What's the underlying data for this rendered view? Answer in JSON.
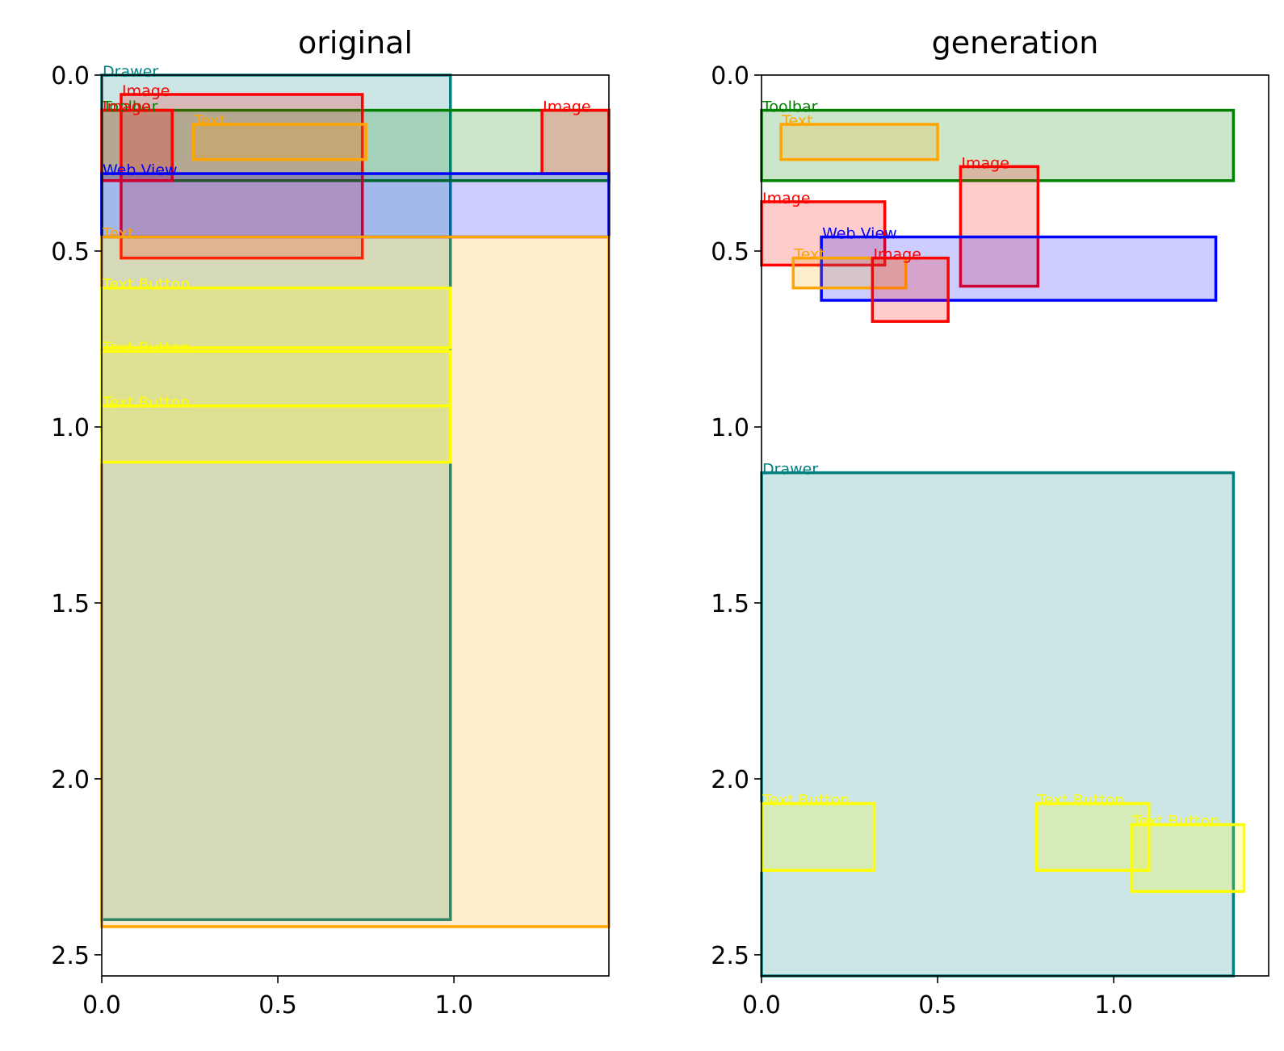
{
  "chart_data": [
    {
      "type": "bounding-box-layout",
      "title": "original",
      "xlim": [
        0.0,
        1.44
      ],
      "ylim": [
        2.56,
        0.0
      ],
      "x_ticks": [
        0.0,
        0.5,
        1.0
      ],
      "y_ticks": [
        0.0,
        0.5,
        1.0,
        1.5,
        2.0,
        2.5
      ],
      "boxes": [
        {
          "label": "Drawer",
          "color": "#008080",
          "x0": 0.0,
          "y0": 0.0,
          "x1": 0.99,
          "y1": 2.4
        },
        {
          "label": "Toolbar",
          "color": "#008000",
          "x0": 0.0,
          "y0": 0.1,
          "x1": 1.44,
          "y1": 0.3
        },
        {
          "label": "Image",
          "color": "#ff0000",
          "x0": 0.0,
          "y0": 0.1,
          "x1": 0.2,
          "y1": 0.3
        },
        {
          "label": "Image",
          "color": "#ff0000",
          "x0": 0.055,
          "y0": 0.055,
          "x1": 0.74,
          "y1": 0.52
        },
        {
          "label": "Text",
          "color": "#ffa500",
          "x0": 0.26,
          "y0": 0.14,
          "x1": 0.75,
          "y1": 0.24
        },
        {
          "label": "Image",
          "color": "#ff0000",
          "x0": 1.25,
          "y0": 0.1,
          "x1": 1.44,
          "y1": 0.28
        },
        {
          "label": "Web View",
          "color": "#0000ff",
          "x0": 0.0,
          "y0": 0.28,
          "x1": 1.44,
          "y1": 0.46
        },
        {
          "label": "Text",
          "color": "#ffa500",
          "x0": 0.0,
          "y0": 0.46,
          "x1": 1.44,
          "y1": 2.42
        },
        {
          "label": "Text Button",
          "color": "#ffff00",
          "x0": 0.0,
          "y0": 0.605,
          "x1": 0.99,
          "y1": 0.775
        },
        {
          "label": "Text Button",
          "color": "#ffff00",
          "x0": 0.0,
          "y0": 0.785,
          "x1": 0.99,
          "y1": 0.94
        },
        {
          "label": "Text Button",
          "color": "#ffff00",
          "x0": 0.0,
          "y0": 0.94,
          "x1": 0.99,
          "y1": 1.1
        }
      ]
    },
    {
      "type": "bounding-box-layout",
      "title": "generation",
      "xlim": [
        0.0,
        1.44
      ],
      "ylim": [
        2.56,
        0.0
      ],
      "x_ticks": [
        0.0,
        0.5,
        1.0
      ],
      "y_ticks": [
        0.0,
        0.5,
        1.0,
        1.5,
        2.0,
        2.5
      ],
      "boxes": [
        {
          "label": "Toolbar",
          "color": "#008000",
          "x0": 0.0,
          "y0": 0.1,
          "x1": 1.34,
          "y1": 0.3
        },
        {
          "label": "Text",
          "color": "#ffa500",
          "x0": 0.055,
          "y0": 0.14,
          "x1": 0.5,
          "y1": 0.24
        },
        {
          "label": "Image",
          "color": "#ff0000",
          "x0": 0.565,
          "y0": 0.26,
          "x1": 0.785,
          "y1": 0.6
        },
        {
          "label": "Image",
          "color": "#ff0000",
          "x0": 0.0,
          "y0": 0.36,
          "x1": 0.35,
          "y1": 0.54
        },
        {
          "label": "Web View",
          "color": "#0000ff",
          "x0": 0.17,
          "y0": 0.46,
          "x1": 1.29,
          "y1": 0.64
        },
        {
          "label": "Text",
          "color": "#ffa500",
          "x0": 0.09,
          "y0": 0.52,
          "x1": 0.41,
          "y1": 0.605
        },
        {
          "label": "Image",
          "color": "#ff0000",
          "x0": 0.315,
          "y0": 0.52,
          "x1": 0.53,
          "y1": 0.7
        },
        {
          "label": "Drawer",
          "color": "#008080",
          "x0": 0.0,
          "y0": 1.13,
          "x1": 1.34,
          "y1": 2.56
        },
        {
          "label": "Text Button",
          "color": "#ffff00",
          "x0": 0.0,
          "y0": 2.07,
          "x1": 0.32,
          "y1": 2.26
        },
        {
          "label": "Text Button",
          "color": "#ffff00",
          "x0": 0.78,
          "y0": 2.07,
          "x1": 1.1,
          "y1": 2.26
        },
        {
          "label": "Text Button",
          "color": "#ffff00",
          "x0": 1.05,
          "y0": 2.13,
          "x1": 1.37,
          "y1": 2.32
        }
      ]
    }
  ]
}
